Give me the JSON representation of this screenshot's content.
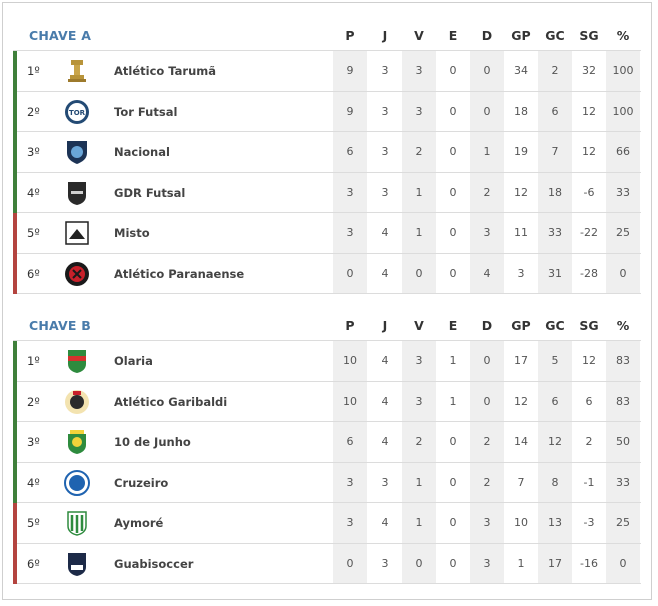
{
  "colors": {
    "green_bar": "#3f7f3a",
    "red_bar": "#b4443f",
    "title": "#4a7cab",
    "stat_shade": "#efefef"
  },
  "columns": [
    "P",
    "J",
    "V",
    "E",
    "D",
    "GP",
    "GC",
    "SG",
    "%"
  ],
  "groups": [
    {
      "title": "CHAVE A",
      "rows": [
        {
          "pos": "1º",
          "team": "Atlético Tarumã",
          "logo": "atletico-taruma-crest",
          "zone": "green",
          "stats": [
            "9",
            "3",
            "3",
            "0",
            "0",
            "34",
            "2",
            "32",
            "100"
          ]
        },
        {
          "pos": "2º",
          "team": "Tor Futsal",
          "logo": "tor-futsal-crest",
          "zone": "green",
          "stats": [
            "9",
            "3",
            "3",
            "0",
            "0",
            "18",
            "6",
            "12",
            "100"
          ]
        },
        {
          "pos": "3º",
          "team": "Nacional",
          "logo": "nacional-crest",
          "zone": "green",
          "stats": [
            "6",
            "3",
            "2",
            "0",
            "1",
            "19",
            "7",
            "12",
            "66"
          ]
        },
        {
          "pos": "4º",
          "team": "GDR Futsal",
          "logo": "gdr-futsal-crest",
          "zone": "green",
          "stats": [
            "3",
            "3",
            "1",
            "0",
            "2",
            "12",
            "18",
            "-6",
            "33"
          ]
        },
        {
          "pos": "5º",
          "team": "Misto",
          "logo": "misto-crest",
          "zone": "red",
          "stats": [
            "3",
            "4",
            "1",
            "0",
            "3",
            "11",
            "33",
            "-22",
            "25"
          ]
        },
        {
          "pos": "6º",
          "team": "Atlético Paranaense",
          "logo": "atletico-paranaense-crest",
          "zone": "red",
          "stats": [
            "0",
            "4",
            "0",
            "0",
            "4",
            "3",
            "31",
            "-28",
            "0"
          ]
        }
      ]
    },
    {
      "title": "CHAVE B",
      "rows": [
        {
          "pos": "1º",
          "team": "Olaria",
          "logo": "olaria-crest",
          "zone": "green",
          "stats": [
            "10",
            "4",
            "3",
            "1",
            "0",
            "17",
            "5",
            "12",
            "83"
          ]
        },
        {
          "pos": "2º",
          "team": "Atlético Garibaldi",
          "logo": "atletico-garibaldi-crest",
          "zone": "green",
          "stats": [
            "10",
            "4",
            "3",
            "1",
            "0",
            "12",
            "6",
            "6",
            "83"
          ]
        },
        {
          "pos": "3º",
          "team": "10 de Junho",
          "logo": "10-de-junho-crest",
          "zone": "green",
          "stats": [
            "6",
            "4",
            "2",
            "0",
            "2",
            "14",
            "12",
            "2",
            "50"
          ]
        },
        {
          "pos": "4º",
          "team": "Cruzeiro",
          "logo": "cruzeiro-crest",
          "zone": "green",
          "stats": [
            "3",
            "3",
            "1",
            "0",
            "2",
            "7",
            "8",
            "-1",
            "33"
          ]
        },
        {
          "pos": "5º",
          "team": "Aymoré",
          "logo": "aymore-crest",
          "zone": "red",
          "stats": [
            "3",
            "4",
            "1",
            "0",
            "3",
            "10",
            "13",
            "-3",
            "25"
          ]
        },
        {
          "pos": "6º",
          "team": "Guabisoccer",
          "logo": "guabisoccer-crest",
          "zone": "red",
          "stats": [
            "0",
            "3",
            "0",
            "0",
            "3",
            "1",
            "17",
            "-16",
            "0"
          ]
        }
      ]
    }
  ]
}
